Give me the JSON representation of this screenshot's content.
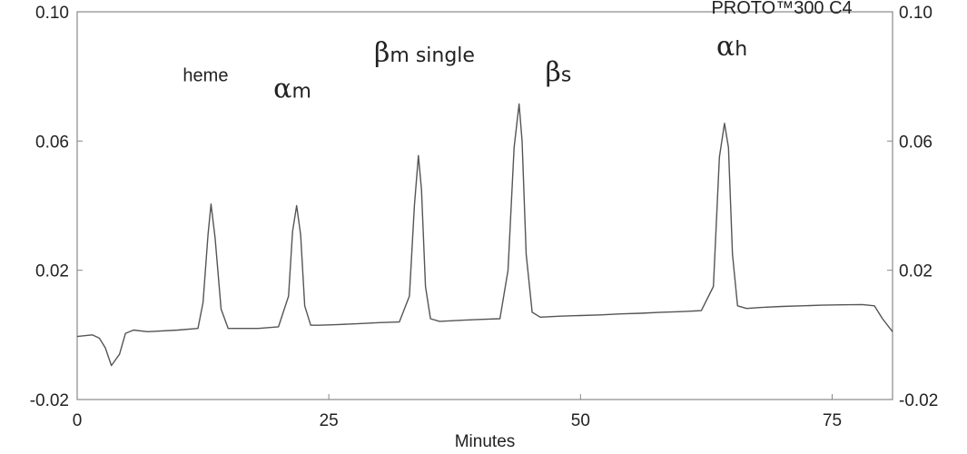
{
  "chart_data": {
    "type": "line",
    "title": "",
    "xlabel": "Minutes",
    "ylabel": "",
    "xlim": [
      0,
      81
    ],
    "ylim": [
      -0.02,
      0.1
    ],
    "x_ticks": [
      {
        "value": 0,
        "label": "0"
      },
      {
        "value": 25,
        "label": "25"
      },
      {
        "value": 50,
        "label": "50"
      },
      {
        "value": 75,
        "label": "75"
      }
    ],
    "y_ticks": [
      {
        "value": 0.1,
        "label": "0.10"
      },
      {
        "value": 0.06,
        "label": "0.06"
      },
      {
        "value": 0.02,
        "label": "0.02"
      },
      {
        "value": -0.02,
        "label": "-0.02"
      }
    ],
    "grid": false,
    "series": [
      {
        "color": "#555555",
        "x": [
          0,
          1.5,
          2.2,
          2.8,
          3.4,
          4.2,
          4.8,
          5.6,
          7,
          10,
          12,
          12.5,
          13,
          13.3,
          13.7,
          14.3,
          15,
          16,
          18,
          20,
          21,
          21.4,
          21.8,
          22.2,
          22.6,
          23.2,
          24,
          26,
          28,
          30,
          32,
          33,
          33.5,
          33.9,
          34.2,
          34.6,
          35.1,
          36,
          38,
          40,
          42,
          42.8,
          43.4,
          43.9,
          44.2,
          44.6,
          45.2,
          46,
          48,
          50,
          52,
          54,
          56,
          58,
          60,
          62,
          63.2,
          63.8,
          64.3,
          64.7,
          65.1,
          65.6,
          66.5,
          68,
          70,
          72,
          74,
          76,
          78,
          79.2,
          80,
          81
        ],
        "y": [
          -0.0005,
          0.0,
          -0.001,
          -0.004,
          -0.0095,
          -0.006,
          0.0005,
          0.0015,
          0.001,
          0.0015,
          0.002,
          0.01,
          0.031,
          0.0405,
          0.03,
          0.008,
          0.002,
          0.002,
          0.002,
          0.0025,
          0.012,
          0.032,
          0.04,
          0.031,
          0.009,
          0.003,
          0.003,
          0.0032,
          0.0035,
          0.0038,
          0.004,
          0.012,
          0.04,
          0.0555,
          0.045,
          0.015,
          0.005,
          0.0042,
          0.0045,
          0.0048,
          0.005,
          0.02,
          0.058,
          0.0715,
          0.06,
          0.025,
          0.007,
          0.0055,
          0.0058,
          0.006,
          0.0062,
          0.0065,
          0.0067,
          0.007,
          0.0072,
          0.0075,
          0.015,
          0.055,
          0.0655,
          0.058,
          0.025,
          0.009,
          0.0082,
          0.0085,
          0.0088,
          0.009,
          0.0092,
          0.0093,
          0.0094,
          0.009,
          0.005,
          0.001
        ]
      }
    ],
    "annotations": [
      {
        "id": "heme",
        "text": "heme",
        "x": 10.5,
        "y": 0.0785
      },
      {
        "id": "alpha-m",
        "greek": "α",
        "sub": "m",
        "x": 19.5,
        "y": 0.0735
      },
      {
        "id": "beta-m",
        "greek": "β",
        "sub": "m single",
        "x": 29.5,
        "y": 0.0845
      },
      {
        "id": "beta-s",
        "greek": "β",
        "sub": "s",
        "x": 46.5,
        "y": 0.0785
      },
      {
        "id": "proto",
        "text": "PROTO™300 C4",
        "x": 63,
        "y": 0.0995
      },
      {
        "id": "alpha-h",
        "greek": "α",
        "sub": "h",
        "x": 63.5,
        "y": 0.0865
      }
    ]
  }
}
